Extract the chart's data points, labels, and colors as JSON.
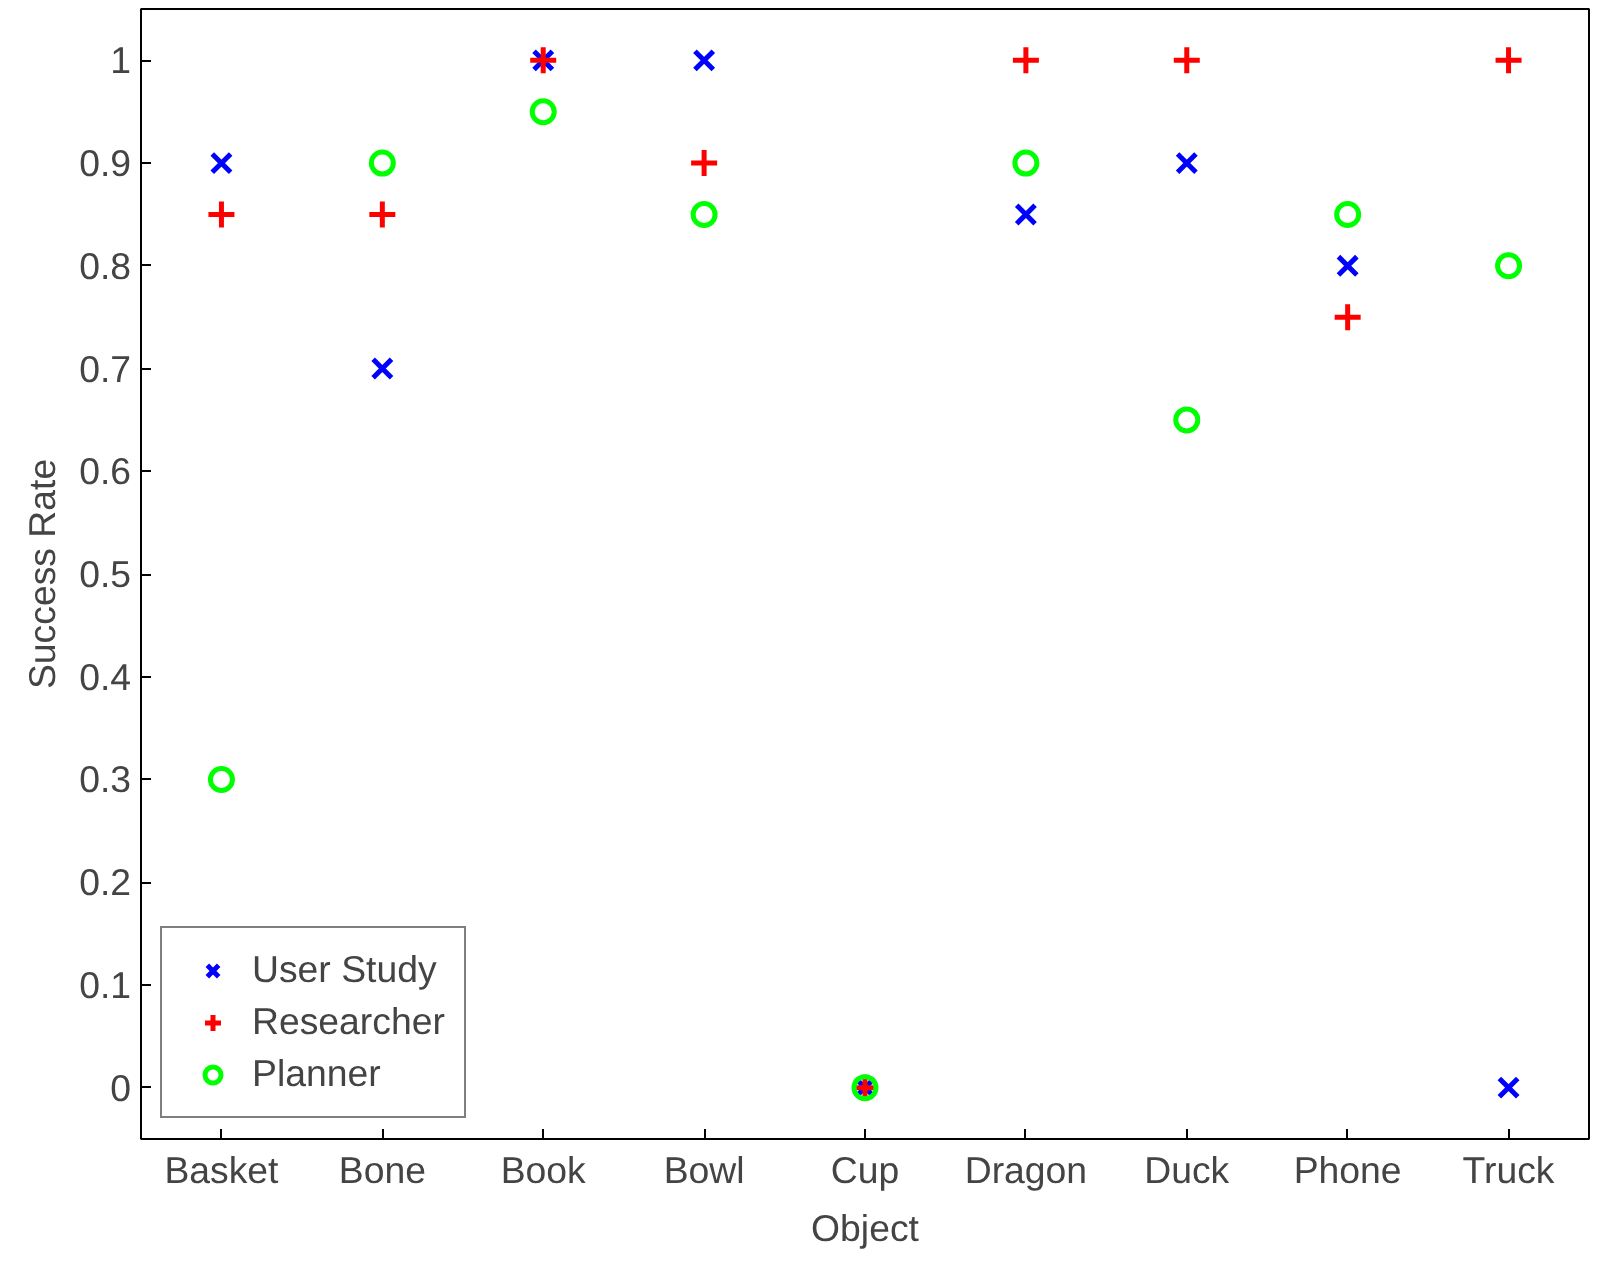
{
  "chart_data": {
    "type": "scatter",
    "xlabel": "Object",
    "ylabel": "Success Rate",
    "categories": [
      "Basket",
      "Bone",
      "Book",
      "Bowl",
      "Cup",
      "Dragon",
      "Duck",
      "Phone",
      "Truck"
    ],
    "ylim": [
      -0.05,
      1.05
    ],
    "yticks": [
      0,
      0.1,
      0.2,
      0.3,
      0.4,
      0.5,
      0.6,
      0.7,
      0.8,
      0.9,
      1
    ],
    "grid": false,
    "legend": "bottom left",
    "series": [
      {
        "name": "User Study",
        "color": "#0000ff",
        "marker": "x",
        "values": [
          0.9,
          0.7,
          1,
          1,
          0,
          0.85,
          0.9,
          0.8,
          0
        ]
      },
      {
        "name": "Researcher",
        "color": "#ff0000",
        "marker": "cross",
        "values": [
          0.85,
          0.85,
          1,
          0.9,
          0,
          1,
          1,
          0.75,
          1
        ]
      },
      {
        "name": "Planner",
        "color": "#00ff00",
        "marker": "circle",
        "values": [
          0.3,
          0.9,
          0.95,
          0.85,
          0,
          0.9,
          0.65,
          0.85,
          0.8
        ]
      }
    ]
  }
}
